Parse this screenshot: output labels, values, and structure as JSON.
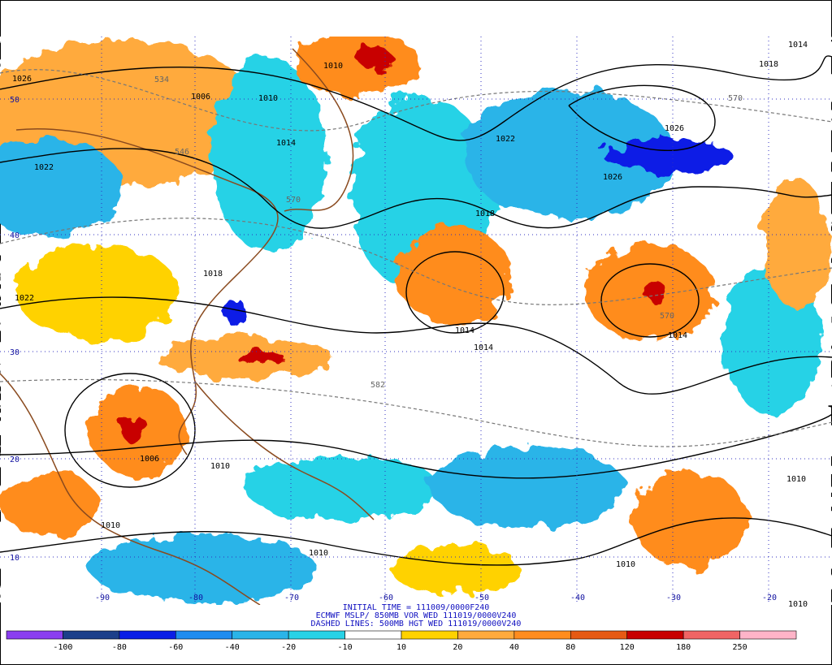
{
  "header": {
    "lines": [
      "INITIAL TIME = 111009/0000F240",
      "ECMWF MSLP/ 850MB VOR WED 111019/0000V240",
      "DASHED LINES: 500MB HGT WED 111019/0000V240"
    ]
  },
  "map": {
    "latitude_labels": [
      "50",
      "40",
      "30",
      "20",
      "10"
    ],
    "longitude_labels": [
      "-90",
      "-80",
      "-70",
      "-60",
      "-50",
      "-40",
      "-30",
      "-20"
    ],
    "contour_labels": [
      "1026",
      "1006",
      "1010",
      "1010",
      "1022",
      "1014",
      "570",
      "1018",
      "1022",
      "1022",
      "1026",
      "1026",
      "1018",
      "1014",
      "1014",
      "1014",
      "1018",
      "1014",
      "570",
      "570",
      "582",
      "1006",
      "1010",
      "1010",
      "1010",
      "1010",
      "1010",
      "1010",
      "534",
      "546"
    ]
  },
  "colorbar": {
    "colors": [
      "#8a3ef0",
      "#1c3f8a",
      "#0a1ee6",
      "#1e8cf0",
      "#2ab4e8",
      "#28d2e6",
      "#ffffff",
      "#ffd200",
      "#ffaa3c",
      "#ff8c1e",
      "#e65a14",
      "#c80000",
      "#f06464",
      "#ffb4c8"
    ],
    "labels": [
      "-100",
      "-80",
      "-60",
      "-40",
      "-20",
      "-10",
      "10",
      "20",
      "40",
      "80",
      "120",
      "180",
      "250"
    ]
  }
}
